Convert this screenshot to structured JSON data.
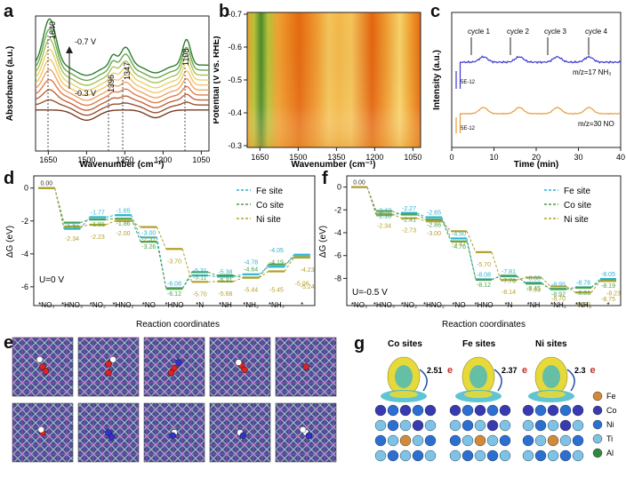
{
  "labels": {
    "a": "a",
    "b": "b",
    "c": "c",
    "d": "d",
    "e": "e",
    "f": "f",
    "g": "g"
  },
  "panel_a": {
    "ylabel": "Absorbance (a.u.)",
    "xlabel": "Wavenumber (cm⁻¹)",
    "xticks": [
      "1650",
      "1500",
      "1350",
      "1200",
      "1050"
    ],
    "peaks": [
      "1640",
      "1396",
      "1347",
      "1108"
    ],
    "v_top": "-0.7 V",
    "v_bot": "-0.3 V"
  },
  "panel_b": {
    "ylabel": "Potential (V vs. RHE)",
    "xlabel": "Wavenumber (cm⁻¹)",
    "xticks": [
      "1650",
      "1500",
      "1350",
      "1200",
      "1050"
    ],
    "yticks": [
      "-0.7",
      "-0.6",
      "-0.5",
      "-0.4",
      "-0.3"
    ]
  },
  "panel_c": {
    "ylabel": "Intensity (a.u.)",
    "xlabel": "Time (min)",
    "xticks": [
      "0",
      "10",
      "20",
      "30",
      "40"
    ],
    "cycles": [
      "cycle 1",
      "cycle 2",
      "cycle 3",
      "cycle 4"
    ],
    "nh3": "m/z=17 NH₃",
    "no": "m/z=30 NO",
    "scale1": "5E-12",
    "scale2": "5E-12"
  },
  "panel_d": {
    "ylabel": "ΔG (eV)",
    "xlabel": "Reaction coordinates",
    "cond": "U=0 V",
    "yticks": [
      "0",
      "-2",
      "-4",
      "-6"
    ],
    "legend": [
      "Fe site",
      "Co site",
      "Ni site"
    ],
    "cats": [
      "*NO₃",
      "*HNO₃",
      "*NO₂",
      "*HNO₂",
      "*NO",
      "*HNO",
      "*N",
      "*NH",
      "*NH₂",
      "*NH₃",
      "*"
    ],
    "start": "0.00",
    "fe": [
      "-2.47",
      "-1.77",
      "-1.65",
      "-3.00",
      "-6.08",
      "-5.31",
      "-5.38",
      "-4.78",
      "-4.05"
    ],
    "co": [
      "-2.10",
      "-1.91",
      "-1.86",
      "-3.26",
      "-6.12",
      "-5.11",
      "-5.31",
      "-4.64",
      "-4.19"
    ],
    "ni": [
      "-2.34",
      "-2.23",
      "-2.00",
      "-2.37",
      "-3.70",
      "-5.70",
      "-5.68",
      "-5.44",
      "-5.45",
      "-5.06",
      "-4.23",
      "-5.24"
    ]
  },
  "panel_f": {
    "ylabel": "ΔG (eV)",
    "xlabel": "Reaction coordinates",
    "cond": "U=-0.5 V",
    "yticks": [
      "0",
      "-2",
      "-4",
      "-6",
      "-8"
    ],
    "legend": [
      "Fe site",
      "Co site",
      "Ni site"
    ],
    "cats": [
      "*NO₃",
      "*HNO₃",
      "*NO₂",
      "*HNO₂",
      "*NO",
      "*HNO",
      "*N",
      "*NH",
      "*NH₂",
      "*NH₃",
      "*"
    ],
    "start": "0.00",
    "fe": [
      "-2.47",
      "-2.27",
      "-2.65",
      "-4.50",
      "-8.08",
      "-7.81",
      "-8.38",
      "-8.95",
      "-8.78",
      "-8.05"
    ],
    "co": [
      "-2.10",
      "-2.41",
      "-2.86",
      "-4.76",
      "-8.12",
      "-7.76",
      "-8.45",
      "-8.92",
      "-8.81",
      "-8.19"
    ],
    "ni": [
      "-2.34",
      "-2.73",
      "-3.00",
      "-3.87",
      "-5.70",
      "-8.14",
      "-7.93",
      "-8.70",
      "-9.23",
      "-8.75",
      "-8.23"
    ]
  },
  "panel_g": {
    "titles": [
      "Co sites",
      "Fe sites",
      "Ni sites"
    ],
    "charges": [
      "2.51",
      "2.37",
      "2.3"
    ],
    "e": "e",
    "legend": [
      "Fe",
      "Co",
      "Ni",
      "Ti",
      "Al"
    ],
    "legend_colors": [
      "#d08a3a",
      "#3a3ab0",
      "#2d6fd0",
      "#7ec3e6",
      "#2e8a3e"
    ]
  },
  "chart_data": [
    {
      "type": "line",
      "panel": "a",
      "xlabel": "Wavenumber (cm⁻¹)",
      "ylabel": "Absorbance (a.u.)",
      "xlim": [
        1700,
        1020
      ],
      "x": [
        1700,
        1640,
        1550,
        1396,
        1347,
        1250,
        1108,
        1020
      ],
      "series": [
        {
          "values": [
            0.55,
            0.92,
            0.42,
            0.5,
            0.56,
            0.36,
            0.62,
            0.42
          ]
        },
        {
          "values": [
            0.1,
            0.3,
            0.08,
            0.14,
            0.16,
            0.06,
            0.18,
            0.08
          ]
        }
      ]
    },
    {
      "type": "heatmap",
      "panel": "b",
      "xlabel": "Wavenumber (cm⁻¹)",
      "ylabel": "Potential (V vs. RHE)",
      "xlim": [
        1700,
        1020
      ],
      "ylim": [
        -0.3,
        -0.7
      ]
    },
    {
      "type": "line",
      "panel": "c",
      "xlabel": "Time (min)",
      "ylabel": "Intensity (a.u.)",
      "xlim": [
        0,
        40
      ],
      "series": [
        {
          "name": "m/z=17 NH₃"
        },
        {
          "name": "m/z=30 NO"
        }
      ]
    },
    {
      "type": "line",
      "panel": "d",
      "xlabel": "Reaction coordinates",
      "ylabel": "ΔG (eV)",
      "categories": [
        "*NO₃",
        "*HNO₃",
        "*NO₂",
        "*HNO₂",
        "*NO",
        "*HNO",
        "*N",
        "*NH",
        "*NH₂",
        "*NH₃",
        "*"
      ],
      "series": [
        {
          "name": "Fe site",
          "values": [
            0,
            -2.47,
            -1.77,
            -1.65,
            -3.0,
            -6.08,
            -5.31,
            -5.38,
            -5.24,
            -4.78,
            -4.05
          ]
        },
        {
          "name": "Co site",
          "values": [
            0,
            -2.1,
            -1.91,
            -1.86,
            -3.26,
            -6.12,
            -5.11,
            -5.31,
            -5.44,
            -4.64,
            -4.19
          ]
        },
        {
          "name": "Ni site",
          "values": [
            0,
            -2.34,
            -2.23,
            -2.0,
            -2.37,
            -3.7,
            -5.7,
            -5.68,
            -5.45,
            -5.06,
            -4.23
          ]
        }
      ]
    },
    {
      "type": "line",
      "panel": "f",
      "xlabel": "Reaction coordinates",
      "ylabel": "ΔG (eV)",
      "categories": [
        "*NO₃",
        "*HNO₃",
        "*NO₂",
        "*HNO₂",
        "*NO",
        "*HNO",
        "*N",
        "*NH",
        "*NH₂",
        "*NH₃",
        "*"
      ],
      "series": [
        {
          "name": "Fe site",
          "values": [
            0,
            -2.47,
            -2.27,
            -2.65,
            -4.5,
            -8.08,
            -7.81,
            -8.38,
            -8.95,
            -8.78,
            -8.05
          ]
        },
        {
          "name": "Co site",
          "values": [
            0,
            -2.1,
            -2.41,
            -2.86,
            -4.76,
            -8.12,
            -7.76,
            -8.45,
            -8.92,
            -8.81,
            -8.19
          ]
        },
        {
          "name": "Ni site",
          "values": [
            0,
            -2.34,
            -2.73,
            -3.0,
            -3.87,
            -5.7,
            -8.14,
            -7.93,
            -8.7,
            -9.23,
            -8.23
          ]
        }
      ]
    }
  ]
}
